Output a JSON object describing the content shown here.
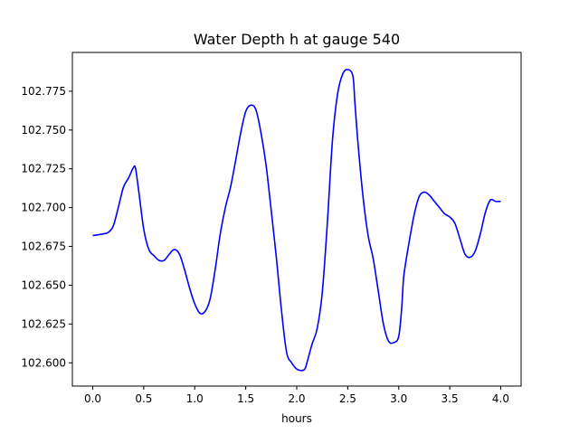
{
  "chart_data": {
    "type": "line",
    "title": "Water Depth h at gauge 540",
    "xlabel": "hours",
    "ylabel": "",
    "xlim": [
      -0.2,
      4.2
    ],
    "ylim": [
      102.585,
      102.8
    ],
    "xticks": [
      0.0,
      0.5,
      1.0,
      1.5,
      2.0,
      2.5,
      3.0,
      3.5,
      4.0
    ],
    "xtick_labels": [
      "0.0",
      "0.5",
      "1.0",
      "1.5",
      "2.0",
      "2.5",
      "3.0",
      "3.5",
      "4.0"
    ],
    "yticks": [
      102.6,
      102.625,
      102.65,
      102.675,
      102.7,
      102.725,
      102.75,
      102.775
    ],
    "ytick_labels": [
      "102.600",
      "102.625",
      "102.650",
      "102.675",
      "102.700",
      "102.725",
      "102.750",
      "102.775"
    ],
    "grid": false,
    "line_color": "#0000ff",
    "series": [
      {
        "x": [
          0.0,
          0.1,
          0.15,
          0.2,
          0.25,
          0.3,
          0.35,
          0.4,
          0.42,
          0.45,
          0.5,
          0.55,
          0.6,
          0.65,
          0.7,
          0.75,
          0.8,
          0.85,
          0.9,
          0.95,
          1.0,
          1.05,
          1.1,
          1.15,
          1.2,
          1.25,
          1.3,
          1.35,
          1.4,
          1.45,
          1.5,
          1.55,
          1.6,
          1.65,
          1.7,
          1.75,
          1.8,
          1.85,
          1.9,
          1.95,
          2.0,
          2.05,
          2.08,
          2.1,
          2.15,
          2.2,
          2.25,
          2.3,
          2.35,
          2.4,
          2.45,
          2.5,
          2.55,
          2.57,
          2.6,
          2.65,
          2.7,
          2.75,
          2.8,
          2.85,
          2.9,
          2.95,
          3.0,
          3.03,
          3.05,
          3.1,
          3.15,
          3.2,
          3.25,
          3.3,
          3.35,
          3.4,
          3.45,
          3.5,
          3.55,
          3.6,
          3.65,
          3.7,
          3.75,
          3.8,
          3.85,
          3.9,
          3.95,
          4.0
        ],
        "y": [
          102.682,
          102.683,
          102.684,
          102.688,
          102.7,
          102.713,
          102.719,
          102.726,
          102.725,
          102.711,
          102.686,
          102.673,
          102.669,
          102.666,
          102.666,
          102.67,
          102.673,
          102.67,
          102.66,
          102.648,
          102.638,
          102.632,
          102.633,
          102.641,
          102.66,
          102.683,
          102.7,
          102.713,
          102.73,
          102.748,
          102.762,
          102.766,
          102.763,
          102.748,
          102.727,
          102.698,
          102.668,
          102.634,
          102.607,
          102.6,
          102.596,
          102.595,
          102.596,
          102.6,
          102.612,
          102.622,
          102.645,
          102.69,
          102.743,
          102.773,
          102.786,
          102.789,
          102.785,
          102.768,
          102.742,
          102.707,
          102.682,
          102.667,
          102.646,
          102.625,
          102.614,
          102.613,
          102.617,
          102.636,
          102.656,
          102.677,
          102.695,
          102.707,
          102.71,
          102.708,
          102.704,
          102.7,
          102.696,
          102.694,
          102.69,
          102.68,
          102.67,
          102.668,
          102.672,
          102.683,
          102.697,
          102.705,
          102.704,
          102.704
        ]
      }
    ]
  }
}
